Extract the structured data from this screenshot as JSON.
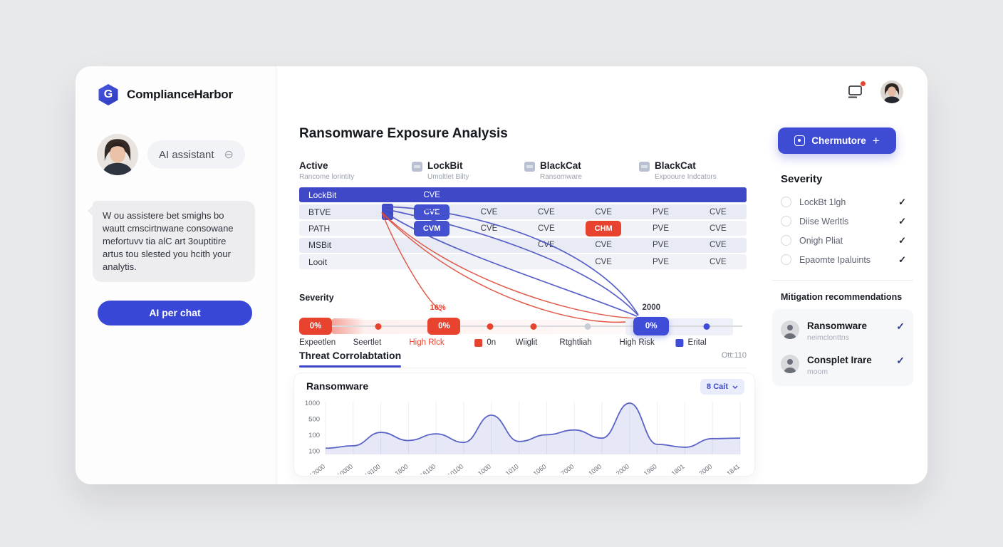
{
  "app": {
    "brand": "ComplianceHarbor",
    "accent": "#3e4bd3",
    "danger": "#e8432e"
  },
  "topbar": {
    "notification_icon": "laptop-icon",
    "notification_badge": true,
    "avatar": "user-avatar"
  },
  "sidebar": {
    "assistant_label": "AI assistant",
    "assistant_icon": "send-icon",
    "message": "W ou assistere bet smighs bo wautt cmscirtnwane consowane mefortuvv tia alC art 3ouptitire artus tou slested you hcith your analytis.",
    "chat_button": "AI per chat"
  },
  "main": {
    "title": "Ransomware Exposure Analysis",
    "columns": [
      {
        "title": "Active",
        "subtitle": "Rancome lorintity",
        "icon": false
      },
      {
        "title": "LockBit",
        "subtitle": "Umoltlet Bilty",
        "icon": true
      },
      {
        "title": "BlackCat",
        "subtitle": "Ransomware",
        "icon": true
      },
      {
        "title": "BlackCat",
        "subtitle": "Expooure Indcators",
        "icon": true
      }
    ],
    "matrix": {
      "header": {
        "label": "LockBit",
        "cell": "CVE"
      },
      "rows": [
        {
          "label": "BTVE",
          "square": true,
          "offset": 0,
          "cells": [
            {
              "t": "CVE",
              "v": "blue"
            },
            {
              "t": "CVE"
            },
            {
              "t": "CVE"
            },
            {
              "t": "CVE"
            },
            {
              "t": "PVE"
            },
            {
              "t": "CVE"
            }
          ]
        },
        {
          "label": "PATH",
          "square": false,
          "offset": 0,
          "cells": [
            {
              "t": "CVM",
              "v": "blue"
            },
            {
              "t": "CVE"
            },
            {
              "t": "CVE"
            },
            {
              "t": "CHM",
              "v": "red"
            },
            {
              "t": "PVE"
            },
            {
              "t": "CVE"
            }
          ]
        },
        {
          "label": "MSBit",
          "square": false,
          "offset": 2,
          "cells": [
            {
              "t": "CVE"
            },
            {
              "t": "CVE"
            },
            {
              "t": "PVE"
            },
            {
              "t": "CVE"
            }
          ]
        },
        {
          "label": "Looit",
          "square": false,
          "offset": 3,
          "cells": [
            {
              "t": "CVE"
            },
            {
              "t": "PVE"
            },
            {
              "t": "CVE"
            }
          ]
        }
      ]
    },
    "severity": {
      "label": "Severity",
      "annotation_red": "16%",
      "annotation_blue": "2000",
      "badge_text": "0%",
      "ticks": [
        {
          "label": "Expeetlen"
        },
        {
          "label": "Seertlet"
        },
        {
          "label": "High Rlck",
          "color": "red"
        },
        {
          "label": "0n",
          "swatch": "red"
        },
        {
          "label": "Wiiglit"
        },
        {
          "label": "Rtghtliah"
        },
        {
          "label": "High Risk"
        },
        {
          "label": "Erital",
          "swatch": "blue"
        }
      ]
    },
    "correlation": {
      "tab": "Threat Corrolabtation",
      "meta": "Ott:110",
      "chart_title": "Ransomware",
      "dropdown": "8 Cait"
    }
  },
  "chart_data": {
    "type": "area",
    "title": "Ransomware",
    "categories": [
      "12000",
      "10000",
      "18100",
      "1800",
      "18100",
      "10100",
      "1000",
      "1010",
      "1060",
      "7000",
      "1090",
      "2000",
      "1960",
      "1801",
      "2000",
      "1841"
    ],
    "values": [
      100,
      150,
      430,
      260,
      400,
      220,
      790,
      240,
      380,
      480,
      310,
      1040,
      180,
      120,
      300,
      310
    ],
    "yticks": [
      "1000",
      "500",
      "100",
      "100"
    ],
    "ylim": [
      0,
      1100
    ],
    "grid": "vertical",
    "line_color": "#5a63c8",
    "fill_color": "rgba(99,110,205,0.16)"
  },
  "right_panel": {
    "cta": {
      "label": "Chermutore",
      "plus": "+"
    },
    "severity_title": "Severity",
    "filters": [
      {
        "label": "LockBt 1lgh",
        "checked": true
      },
      {
        "label": "Diise Werltls",
        "checked": true
      },
      {
        "label": "Onigh Pliat",
        "checked": true
      },
      {
        "label": "Epaomte Ipaluints",
        "checked": true
      }
    ],
    "mitigation_title": "Mitigation recommendations",
    "recommendations": [
      {
        "title": "Ransomware",
        "subtitle": "neimclonttns",
        "checked": true
      },
      {
        "title": "Consplet Irare",
        "subtitle": "moom",
        "checked": true
      }
    ]
  }
}
